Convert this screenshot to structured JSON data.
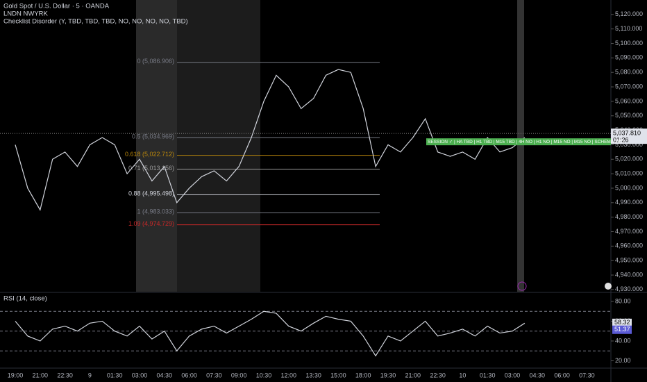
{
  "chart_data": [
    {
      "type": "line",
      "title": "Gold Spot / U.S. Dollar · 5 · OANDA",
      "subtitle": "LNDN NWYRK",
      "indicator": "Checklist Disorder (Y, TBD, TBD, TBD, NO, NO, NO, NO, TBD)",
      "categories": [
        "19:00",
        null,
        "21:00",
        null,
        "22:30",
        null,
        "9",
        null,
        "01:30",
        null,
        "03:00",
        null,
        "04:30",
        null,
        "06:00",
        null,
        "07:30",
        null,
        "09:00",
        null,
        "10:30",
        null,
        "12:00",
        null,
        "13:30",
        null,
        "15:00",
        null,
        "18:00",
        null,
        "19:30",
        null,
        "21:00",
        null,
        "22:30",
        null,
        "10",
        null,
        "01:30",
        null,
        "03:00",
        null,
        "04:30",
        null,
        "06:00",
        null,
        "07:30",
        null
      ],
      "values": [
        5030,
        5000,
        4985,
        5020,
        5025,
        5015,
        5030,
        5035,
        5030,
        5010,
        5020,
        5005,
        5015,
        4990,
        5000,
        5008,
        5012,
        5005,
        5015,
        5035,
        5060,
        5078,
        5070,
        5055,
        5062,
        5078,
        5082,
        5080,
        5055,
        5015,
        5030,
        5025,
        5035,
        5048,
        5025,
        5022,
        5025,
        5020,
        5035,
        5025,
        5028,
        5035,
        null,
        null,
        null,
        null,
        null,
        null
      ],
      "color": "#d1d4dc",
      "ylim": [
        4928.5,
        5130
      ],
      "yticks": [
        {
          "value": 4930,
          "label": "4,930.000"
        },
        {
          "value": 4940,
          "label": "4,940.000"
        },
        {
          "value": 4950,
          "label": "4,950.000"
        },
        {
          "value": 4960,
          "label": "4,960.000"
        },
        {
          "value": 4970,
          "label": "4,970.000"
        },
        {
          "value": 4980,
          "label": "4,980.000"
        },
        {
          "value": 4990,
          "label": "4,990.000"
        },
        {
          "value": 5000,
          "label": "5,000.000"
        },
        {
          "value": 5010,
          "label": "5,010.000"
        },
        {
          "value": 5020,
          "label": "5,020.000"
        },
        {
          "value": 5030,
          "label": "5,030.000"
        },
        {
          "value": 5040,
          "label": "5,040.000"
        },
        {
          "value": 5050,
          "label": "5,050.000"
        },
        {
          "value": 5060,
          "label": "5,060.000"
        },
        {
          "value": 5070,
          "label": "5,070.000"
        },
        {
          "value": 5080,
          "label": "5,080.000"
        },
        {
          "value": 5090,
          "label": "5,090.000"
        },
        {
          "value": 5100,
          "label": "5,100.000"
        },
        {
          "value": 5110,
          "label": "5,110.000"
        },
        {
          "value": 5120,
          "label": "5,120.000"
        }
      ],
      "fib_levels": [
        {
          "value": 5086.906,
          "label": "0 (5,086.906)",
          "color": "#787b86"
        },
        {
          "value": 5034.969,
          "label": "0.5 (5,034.969)",
          "color": "#787b86"
        },
        {
          "value": 5022.712,
          "label": "0.618 (5,022.712)",
          "color": "#b8860b"
        },
        {
          "value": 5013.156,
          "label": "0.71 (5,013.156)",
          "color": "#9e9e9e"
        },
        {
          "value": 4995.498,
          "label": "0.88 (4,995.498)",
          "color": "#d1d4dc"
        },
        {
          "value": 4983.033,
          "label": "1 (4,983.033)",
          "color": "#787b86"
        },
        {
          "value": 4974.729,
          "label": "1.09 (4,974.729)",
          "color": "#c62828"
        }
      ],
      "last_price": {
        "value": 5037.81,
        "label": "5,037.810"
      },
      "countdown": "01:26",
      "banner": "SESSION ✓ | HA TBD | H1 TBD | M15 TBD | 4H NO | H1 NO | M15 NO | M15 NO | SCHEMA TBD",
      "banner_color": "#4caf50"
    },
    {
      "type": "line",
      "title": "RSI (14, close)",
      "values": [
        60,
        45,
        40,
        52,
        55,
        50,
        58,
        60,
        50,
        45,
        55,
        42,
        50,
        30,
        45,
        52,
        55,
        48,
        55,
        62,
        70,
        68,
        55,
        50,
        58,
        65,
        62,
        60,
        45,
        25,
        45,
        40,
        50,
        60,
        45,
        48,
        52,
        45,
        55,
        48,
        50,
        58,
        null,
        null,
        null,
        null,
        null,
        null
      ],
      "color": "#d1d4dc",
      "ylim": [
        12.6,
        88.4
      ],
      "yticks": [
        {
          "value": 20,
          "label": "20.00"
        },
        {
          "value": 40,
          "label": "40.00"
        },
        {
          "value": 60,
          "label": "60.00"
        },
        {
          "value": 80,
          "label": "80.00"
        }
      ],
      "levels": [
        70,
        50,
        30
      ],
      "last_value": {
        "value": 58.32,
        "label": "58.32"
      },
      "ma_value": {
        "value": 51.37,
        "label": "51.37"
      },
      "ma_color": "#5b5bd6"
    }
  ]
}
